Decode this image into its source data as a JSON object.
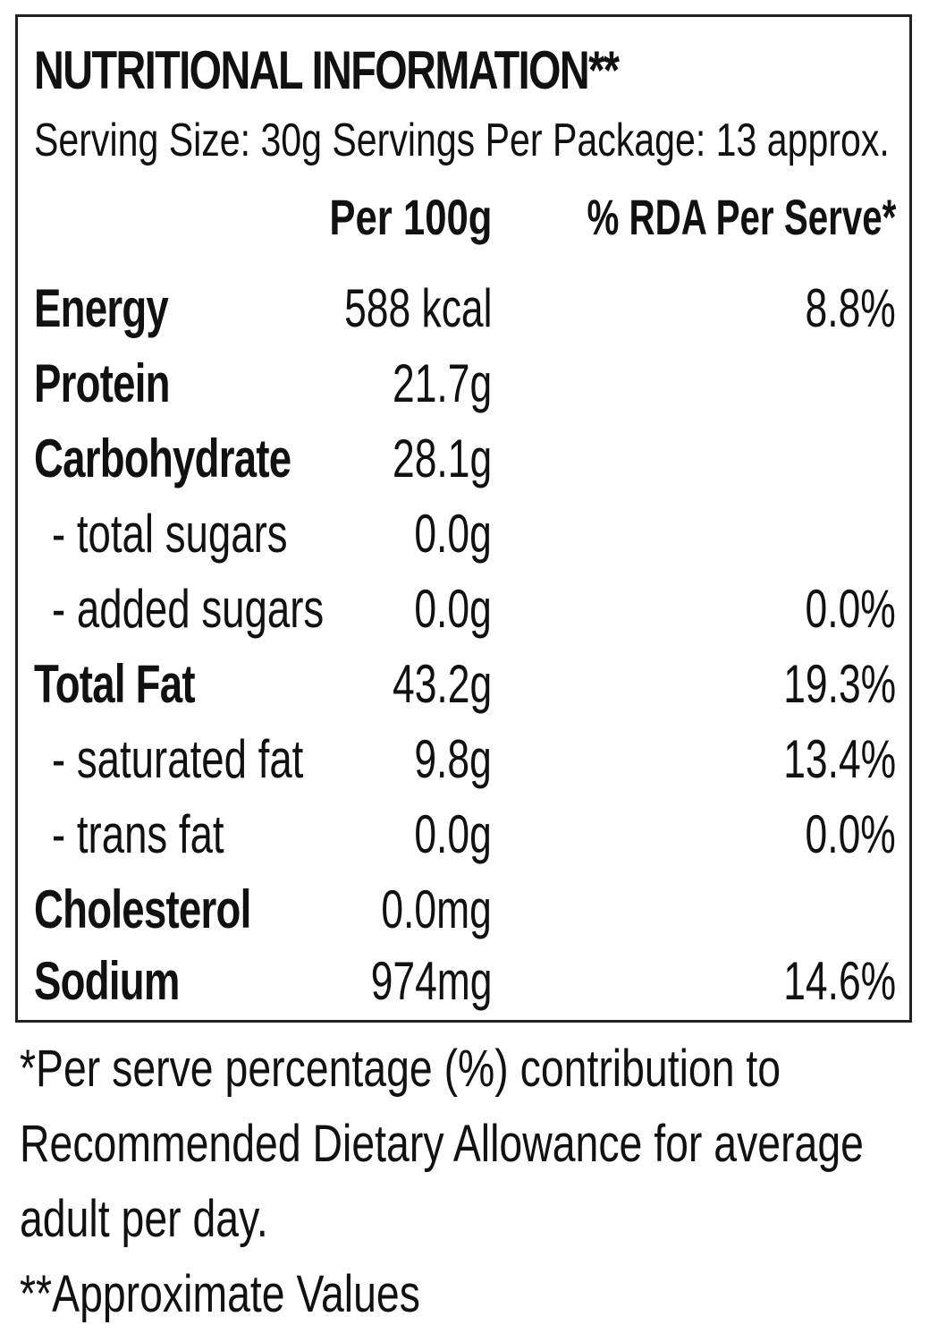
{
  "label": {
    "title": "NUTRITIONAL INFORMATION**",
    "serving_line": "Serving Size: 30g Servings Per Package: 13 approx.",
    "columns": {
      "per_100g": "Per 100g",
      "rda": "% RDA Per Serve*"
    },
    "rows": [
      {
        "name": "Energy",
        "per_100g": "588 kcal",
        "rda": "8.8%"
      },
      {
        "name": "Protein",
        "per_100g": "21.7g",
        "rda": ""
      },
      {
        "name": "Carbohydrate",
        "per_100g": "28.1g",
        "rda": ""
      },
      {
        "name": "- total sugars",
        "per_100g": "0.0g",
        "rda": ""
      },
      {
        "name": "- added sugars",
        "per_100g": "0.0g",
        "rda": "0.0%"
      },
      {
        "name": "Total Fat",
        "per_100g": "43.2g",
        "rda": "19.3%"
      },
      {
        "name": "- saturated fat",
        "per_100g": "9.8g",
        "rda": "13.4%"
      },
      {
        "name": "- trans fat",
        "per_100g": "0.0g",
        "rda": "0.0%"
      },
      {
        "name": "Cholesterol",
        "per_100g": "0.0mg",
        "rda": ""
      },
      {
        "name": "Sodium",
        "per_100g": "974mg",
        "rda": "14.6%"
      }
    ]
  },
  "footnotes": {
    "line1": "*Per serve percentage (%) contribution to",
    "line2": "Recommended Dietary Allowance for average",
    "line3": "adult per day.",
    "line4": "**Approximate Values"
  }
}
